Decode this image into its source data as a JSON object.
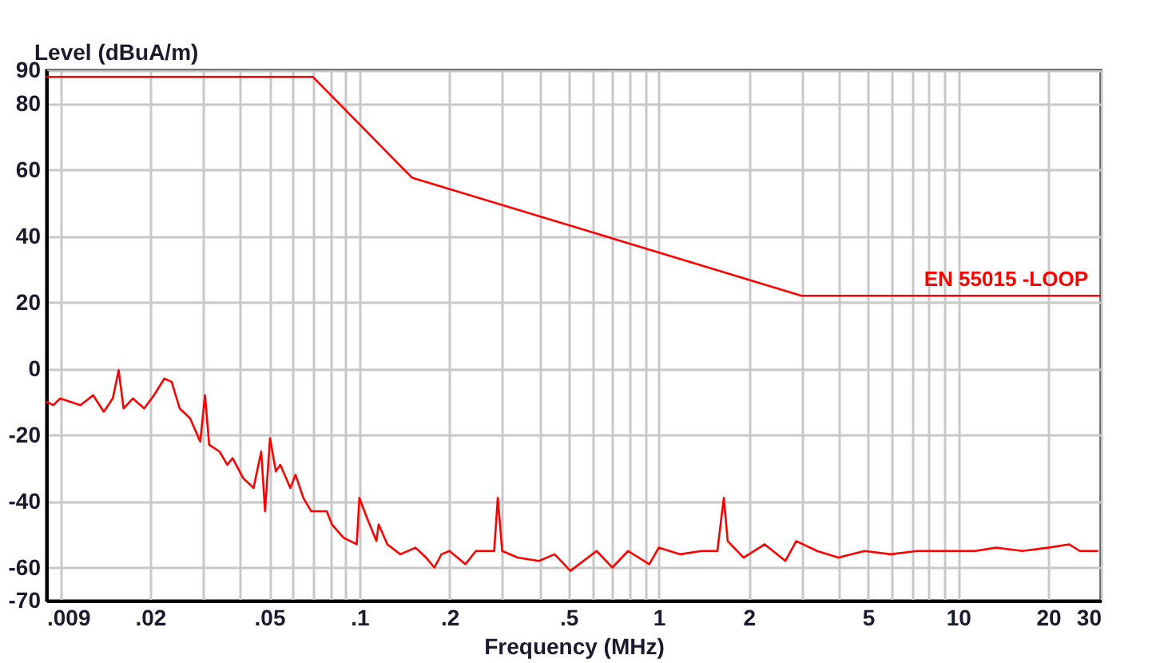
{
  "chart_data": {
    "type": "line",
    "xlabel": "Frequency (MHz)",
    "ylabel": "Level (dBuA/m)",
    "log": "x",
    "grid": true,
    "legend": false,
    "xlim": [
      0.009,
      30
    ],
    "ylim": [
      -70,
      90
    ],
    "xticks": [
      {
        "value": 0.009,
        "label": ".009"
      },
      {
        "value": 0.01,
        "label": null
      },
      {
        "value": 0.02,
        "label": ".02"
      },
      {
        "value": 0.03,
        "label": null
      },
      {
        "value": 0.04,
        "label": null
      },
      {
        "value": 0.05,
        "label": ".05"
      },
      {
        "value": 0.06,
        "label": null
      },
      {
        "value": 0.07,
        "label": null
      },
      {
        "value": 0.08,
        "label": null
      },
      {
        "value": 0.09,
        "label": null
      },
      {
        "value": 0.1,
        "label": ".1"
      },
      {
        "value": 0.2,
        "label": ".2"
      },
      {
        "value": 0.3,
        "label": null
      },
      {
        "value": 0.4,
        "label": null
      },
      {
        "value": 0.5,
        "label": ".5"
      },
      {
        "value": 0.6,
        "label": null
      },
      {
        "value": 0.7,
        "label": null
      },
      {
        "value": 0.8,
        "label": null
      },
      {
        "value": 0.9,
        "label": null
      },
      1,
      2,
      {
        "value": 3,
        "label": null
      },
      {
        "value": 4,
        "label": null
      },
      5,
      {
        "value": 6,
        "label": null
      },
      {
        "value": 7,
        "label": null
      },
      {
        "value": 8,
        "label": null
      },
      {
        "value": 9,
        "label": null
      },
      10,
      20,
      30
    ],
    "yticks": [
      90,
      80,
      60,
      40,
      20,
      0,
      -20,
      -40,
      -60,
      -70
    ],
    "series": [
      {
        "name": "EN 55015 -LOOP",
        "color": "#ff0000",
        "x": [
          0.009,
          0.07,
          0.15,
          3,
          30
        ],
        "values": [
          88,
          88,
          57.6,
          22,
          22
        ]
      },
      {
        "color": "#ff0000",
        "x": [
          0.009,
          0.0095,
          0.01,
          0.0117,
          0.0129,
          0.014,
          0.015,
          0.0157,
          0.0163,
          0.0175,
          0.0191,
          0.0206,
          0.0223,
          0.0236,
          0.0251,
          0.0272,
          0.0294,
          0.0305,
          0.0315,
          0.0341,
          0.0362,
          0.0377,
          0.0409,
          0.0443,
          0.047,
          0.0484,
          0.0503,
          0.0526,
          0.0544,
          0.0588,
          0.0612,
          0.065,
          0.069,
          0.0778,
          0.081,
          0.0885,
          0.098,
          0.1,
          0.106,
          0.114,
          0.116,
          0.124,
          0.137,
          0.154,
          0.167,
          0.178,
          0.188,
          0.2,
          0.226,
          0.245,
          0.282,
          0.29,
          0.3,
          0.338,
          0.398,
          0.449,
          0.507,
          0.62,
          0.7,
          0.79,
          0.93,
          1.0,
          1.18,
          1.39,
          1.57,
          1.65,
          1.7,
          1.92,
          2.26,
          2.65,
          2.88,
          3.38,
          3.98,
          4.87,
          5.96,
          7.3,
          8.93,
          11.4,
          13.4,
          16.4,
          20.0,
          23.5,
          25.5,
          29.4
        ],
        "values": [
          -10,
          -11,
          -9,
          -11,
          -8,
          -13,
          -9,
          -0.5,
          -12,
          -9,
          -12,
          -8,
          -3,
          -4,
          -12,
          -15,
          -22,
          -8,
          -23,
          -25,
          -29,
          -27,
          -33,
          -36,
          -25,
          -43,
          -21,
          -31,
          -29,
          -36,
          -32,
          -39,
          -43,
          -43,
          -47,
          -51,
          -53,
          -39,
          -45,
          -52,
          -47,
          -53,
          -56,
          -54,
          -57,
          -60,
          -56,
          -55,
          -59,
          -55,
          -55,
          -39,
          -55,
          -57,
          -58,
          -56,
          -61,
          -55,
          -60,
          -55,
          -59,
          -54,
          -56,
          -55,
          -55,
          -39,
          -52,
          -57,
          -53,
          -58,
          -52,
          -55,
          -57,
          -55,
          -56,
          -55,
          -55,
          -55,
          -54,
          -55,
          -54,
          -53,
          -55,
          -55
        ]
      }
    ]
  }
}
